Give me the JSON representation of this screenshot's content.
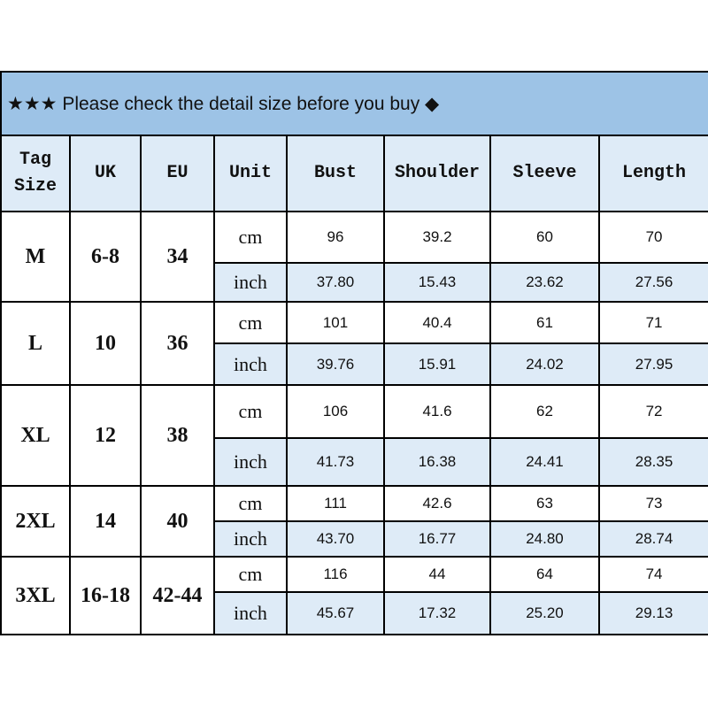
{
  "title": "★★★ Please check the detail size before you buy ◆",
  "headers": [
    "Tag Size",
    "UK",
    "EU",
    "Unit",
    "Bust",
    "Shoulder",
    "Sleeve",
    "Length"
  ],
  "colors": {
    "title_bg": "#9dc3e6",
    "header_bg": "#deebf7",
    "inch_row_bg": "#deebf7"
  },
  "rows": [
    {
      "tag": "M",
      "uk": "6-8",
      "eu": "34",
      "cm": {
        "unit": "cm",
        "bust": "96",
        "shoulder": "39.2",
        "sleeve": "60",
        "length": "70"
      },
      "inch": {
        "unit": "inch",
        "bust": "37.80",
        "shoulder": "15.43",
        "sleeve": "23.62",
        "length": "27.56"
      }
    },
    {
      "tag": "L",
      "uk": "10",
      "eu": "36",
      "cm": {
        "unit": "cm",
        "bust": "101",
        "shoulder": "40.4",
        "sleeve": "61",
        "length": "71"
      },
      "inch": {
        "unit": "inch",
        "bust": "39.76",
        "shoulder": "15.91",
        "sleeve": "24.02",
        "length": "27.95"
      }
    },
    {
      "tag": "XL",
      "uk": "12",
      "eu": "38",
      "cm": {
        "unit": "cm",
        "bust": "106",
        "shoulder": "41.6",
        "sleeve": "62",
        "length": "72"
      },
      "inch": {
        "unit": "inch",
        "bust": "41.73",
        "shoulder": "16.38",
        "sleeve": "24.41",
        "length": "28.35"
      }
    },
    {
      "tag": "2XL",
      "uk": "14",
      "eu": "40",
      "cm": {
        "unit": "cm",
        "bust": "111",
        "shoulder": "42.6",
        "sleeve": "63",
        "length": "73"
      },
      "inch": {
        "unit": "inch",
        "bust": "43.70",
        "shoulder": "16.77",
        "sleeve": "24.80",
        "length": "28.74"
      }
    },
    {
      "tag": "3XL",
      "uk": "16-18",
      "eu": "42-44",
      "cm": {
        "unit": "cm",
        "bust": "116",
        "shoulder": "44",
        "sleeve": "64",
        "length": "74"
      },
      "inch": {
        "unit": "inch",
        "bust": "45.67",
        "shoulder": "17.32",
        "sleeve": "25.20",
        "length": "29.13"
      }
    }
  ]
}
